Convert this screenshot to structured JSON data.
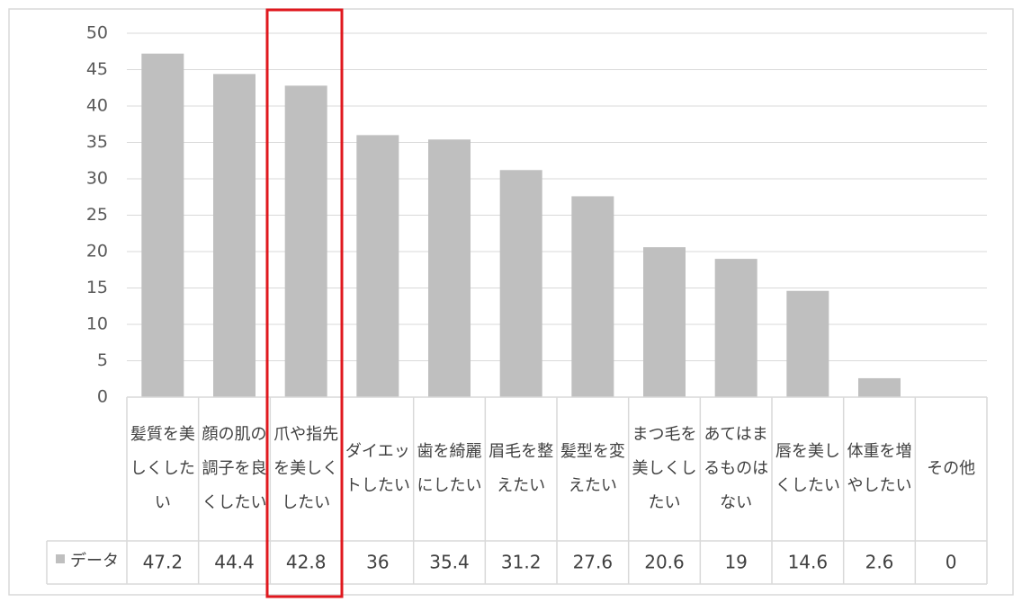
{
  "chart_data": {
    "type": "bar",
    "categories": [
      "髪質を美しくしたい",
      "顔の肌の調子を良くしたい",
      "爪や指先を美しくしたい",
      "ダイエットしたい",
      "歯を綺麗にしたい",
      "眉毛を整えたい",
      "髪型を変えたい",
      "まつ毛を美しくしたい",
      "あてはまるものはない",
      "唇を美しくしたい",
      "体重を増やしたい",
      "その他"
    ],
    "series": [
      {
        "name": "データ",
        "color": "#bfbfbf",
        "values": [
          47.2,
          44.4,
          42.8,
          36,
          35.4,
          31.2,
          27.6,
          20.6,
          19,
          14.6,
          2.6,
          0
        ]
      }
    ],
    "ylim": [
      0,
      50
    ],
    "yticks": [
      0,
      5,
      10,
      15,
      20,
      25,
      30,
      35,
      40,
      45,
      50
    ],
    "grid": true
  }
}
